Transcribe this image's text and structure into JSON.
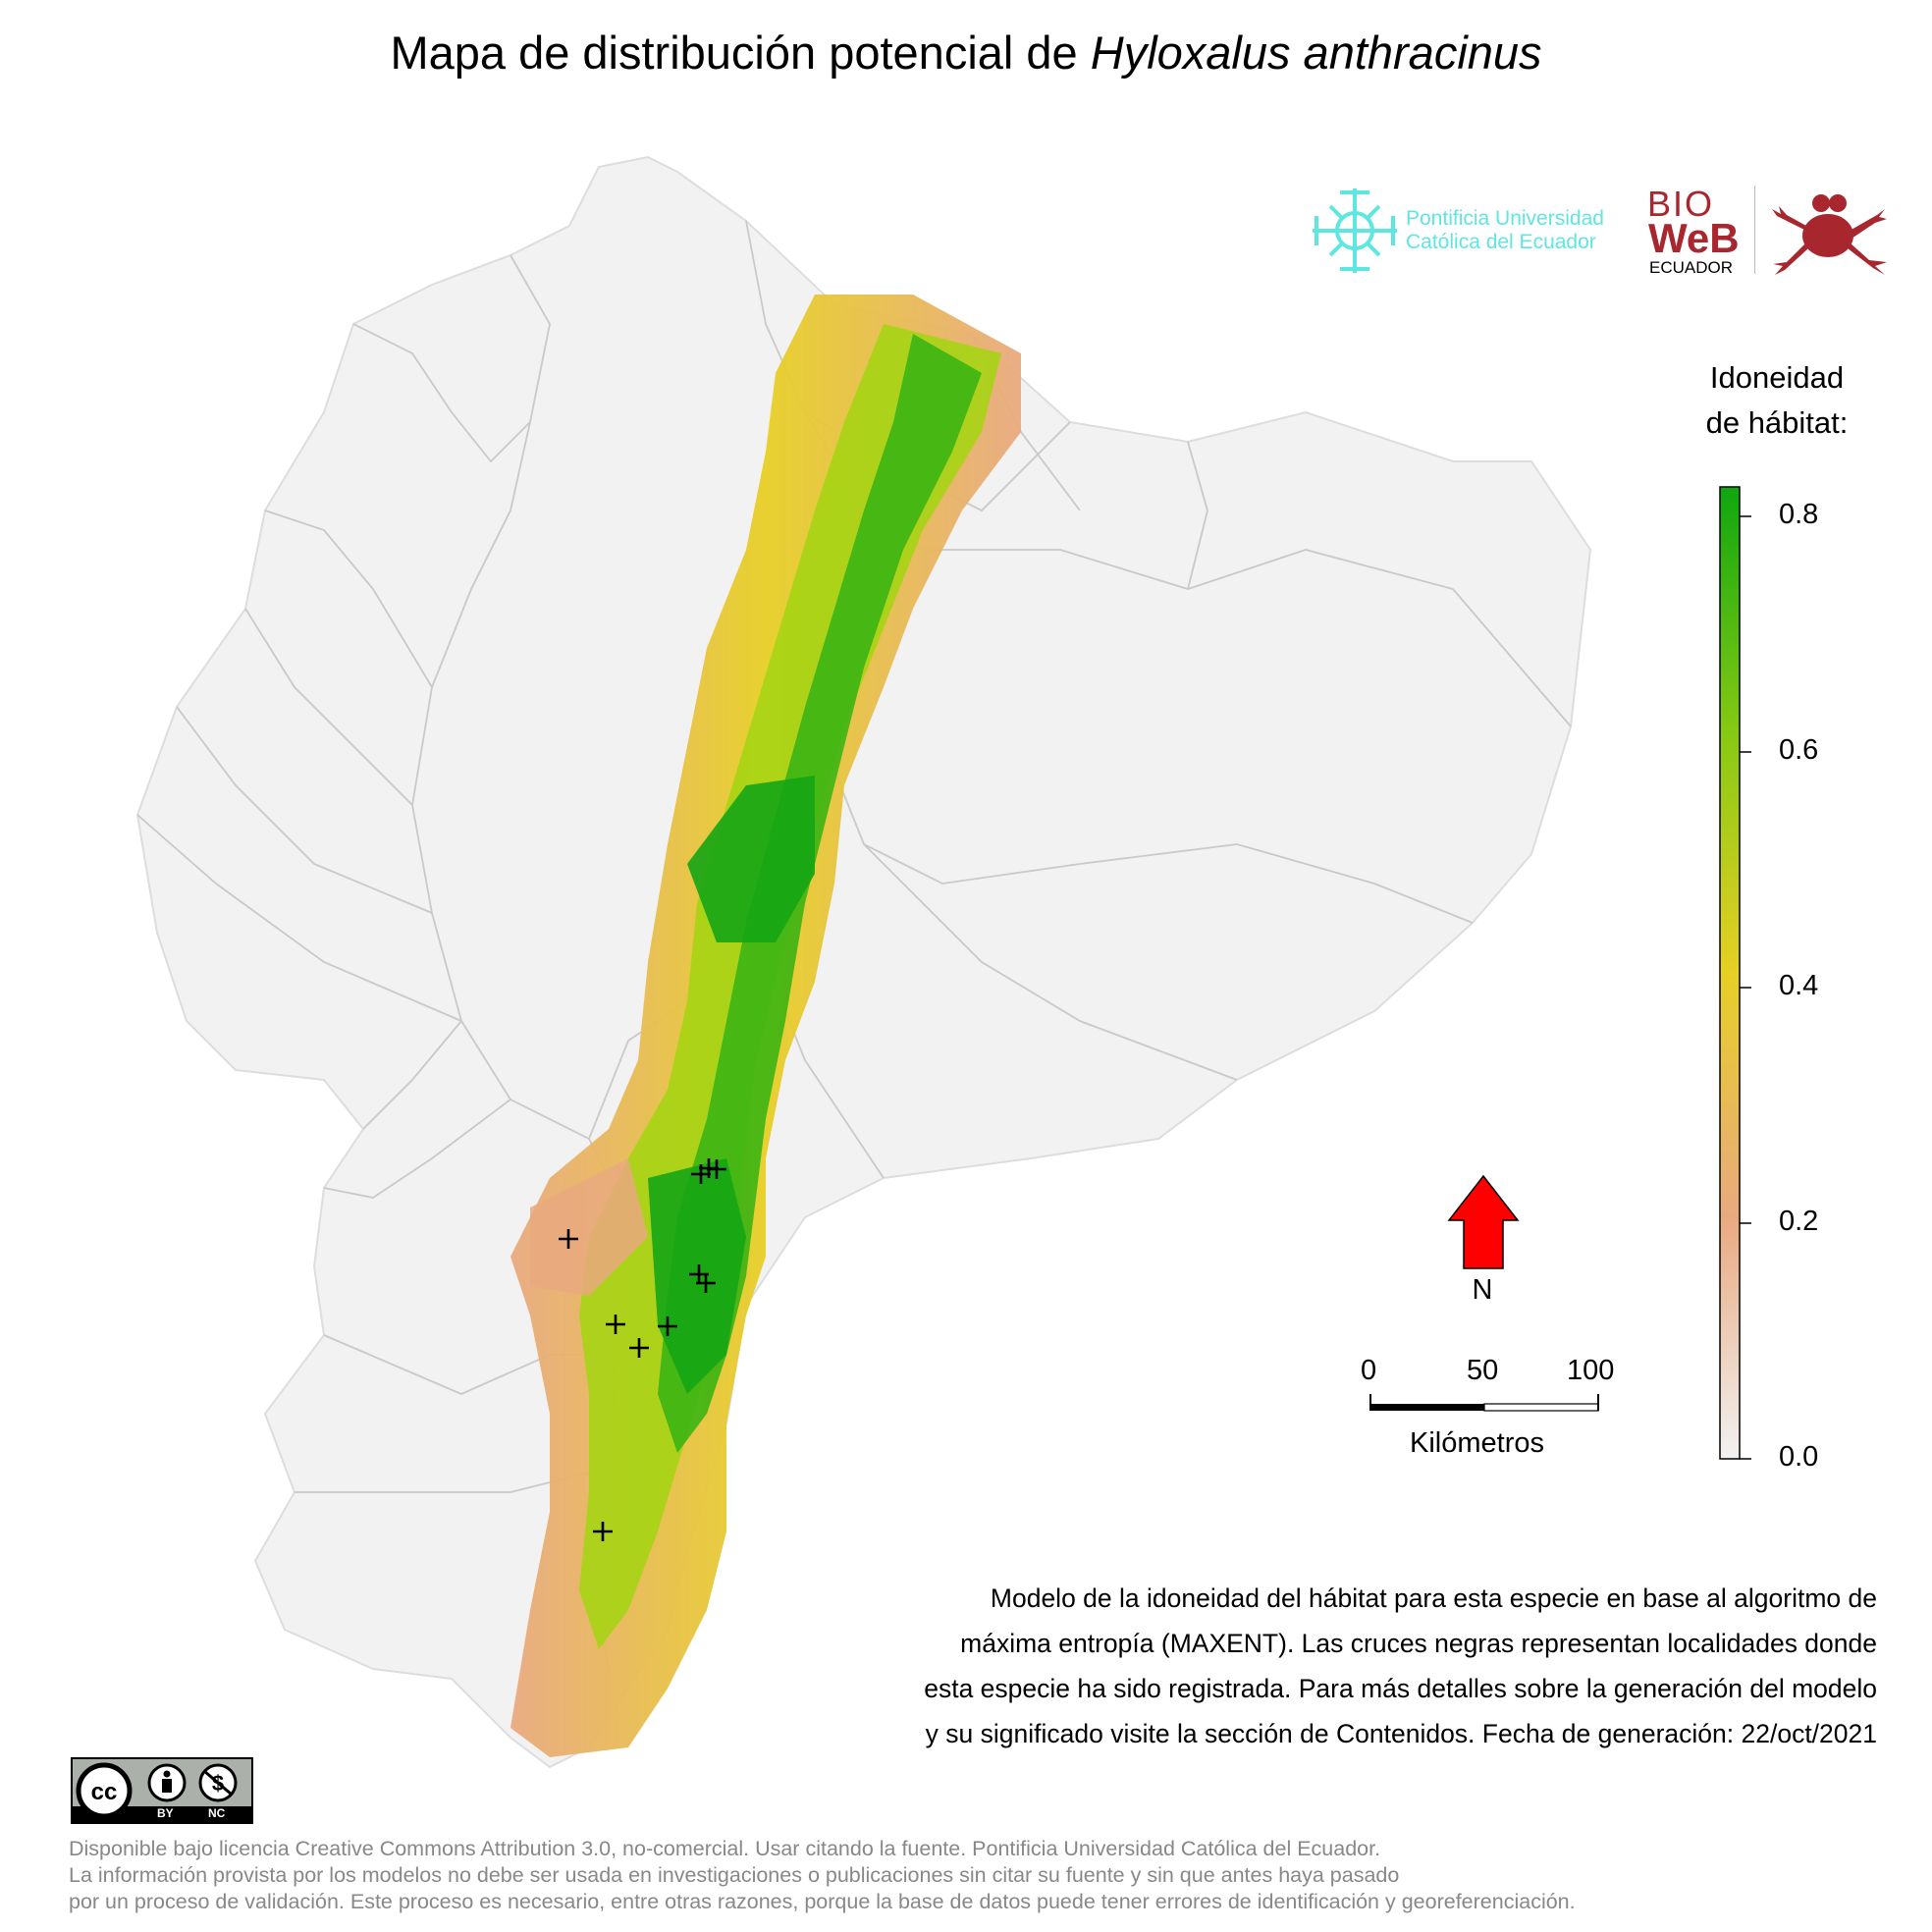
{
  "title": {
    "prefix": "Mapa de distribución potencial de ",
    "species": "Hyloxalus anthracinus"
  },
  "logos": {
    "puce_line1": "Pontificia Universidad",
    "puce_line2": "Católica del Ecuador",
    "bioweb_line1": "BIO",
    "bioweb_line2": "WeB",
    "bioweb_line3": "ECUADOR"
  },
  "legend": {
    "title_line1": "Idoneidad",
    "title_line2": "de hábitat:",
    "ticks": [
      "0.8",
      "0.6",
      "0.4",
      "0.2",
      "0.0"
    ],
    "colors": [
      "#f2f2f2",
      "#e9a97f",
      "#e7cf25",
      "#85c913",
      "#0fa70f"
    ]
  },
  "north_arrow": {
    "label": "N",
    "color": "#ff0000"
  },
  "scale_bar": {
    "labels": [
      "0",
      "50",
      "100"
    ],
    "unit": "Kilómetros"
  },
  "caption": [
    "Modelo de la idoneidad del hábitat para esta especie en base al algoritmo de",
    "máxima entropía (MAXENT). Las cruces negras representan localidades donde",
    "esta especie ha sido registrada. Para más detalles sobre la generación del modelo",
    "y su significado visite la sección de Contenidos. Fecha de generación: 22/oct/2021"
  ],
  "footer": [
    "Disponible bajo licencia Creative Commons Attribution 3.0, no-comercial. Usar citando la fuente. Pontificia Universidad Católica del Ecuador.",
    "La información provista por los modelos no debe ser usada en investigaciones o publicaciones sin citar su fuente y sin que antes haya pasado",
    "por un proceso de validación. Este proceso es necesario, entre otras razones, porque la base de datos puede tener errores de identificación y georeferenciación."
  ],
  "license_badge": {
    "by": "BY",
    "nc": "NC"
  }
}
